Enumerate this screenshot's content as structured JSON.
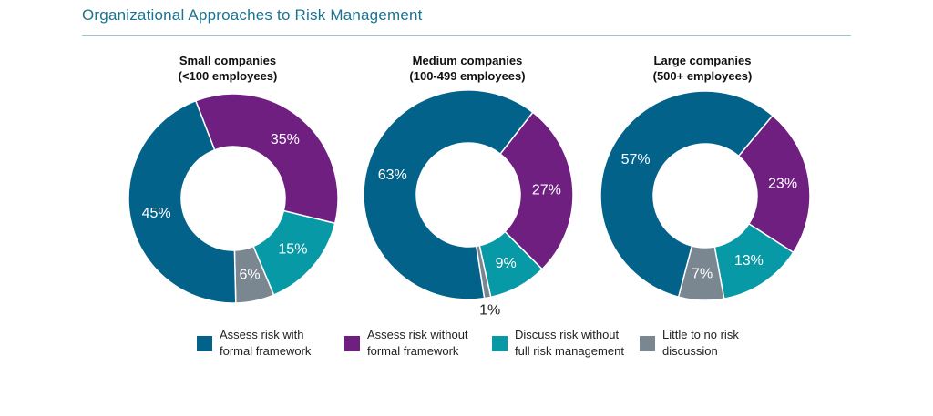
{
  "header": {
    "title": "Organizational Approaches to Risk Management"
  },
  "colors": {
    "formal": "#02628a",
    "without_formal": "#6e1f80",
    "discuss": "#0899a6",
    "little": "#7a8690"
  },
  "chart_data": [
    {
      "type": "pie",
      "title_line1": "Small companies",
      "title_line2": "(<100 employees)",
      "slices": [
        {
          "key": "without_formal",
          "value": 35,
          "label": "35%"
        },
        {
          "key": "discuss",
          "value": 15,
          "label": "15%"
        },
        {
          "key": "little",
          "value": 6,
          "label": "6%"
        },
        {
          "key": "formal",
          "value": 45,
          "label": "45%"
        }
      ]
    },
    {
      "type": "pie",
      "title_line1": "Medium companies",
      "title_line2": "(100-499 employees)",
      "slices": [
        {
          "key": "without_formal",
          "value": 27,
          "label": "27%"
        },
        {
          "key": "discuss",
          "value": 9,
          "label": "9%"
        },
        {
          "key": "little",
          "value": 1,
          "label": "1%"
        },
        {
          "key": "formal",
          "value": 63,
          "label": "63%"
        }
      ]
    },
    {
      "type": "pie",
      "title_line1": "Large companies",
      "title_line2": "(500+ employees)",
      "slices": [
        {
          "key": "without_formal",
          "value": 23,
          "label": "23%"
        },
        {
          "key": "discuss",
          "value": 13,
          "label": "13%"
        },
        {
          "key": "little",
          "value": 7,
          "label": "7%"
        },
        {
          "key": "formal",
          "value": 57,
          "label": "57%"
        }
      ]
    }
  ],
  "legend": [
    {
      "key": "formal",
      "line1": "Assess risk with",
      "line2": "formal framework"
    },
    {
      "key": "without_formal",
      "line1": "Assess risk without",
      "line2": "formal framework"
    },
    {
      "key": "discuss",
      "line1": "Discuss risk without",
      "line2": "full risk management"
    },
    {
      "key": "little",
      "line1": "Little to no risk",
      "line2": "discussion"
    }
  ]
}
